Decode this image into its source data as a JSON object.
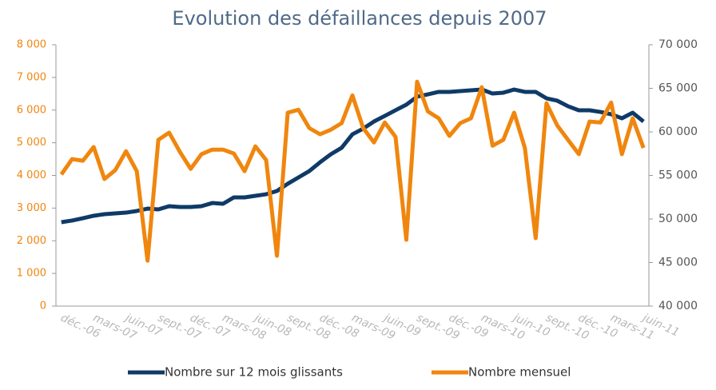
{
  "chart_data": {
    "type": "line",
    "title": "Evolution des défaillances depuis 2007",
    "categories": [
      "déc.-06",
      null,
      null,
      "mars-07",
      null,
      null,
      "juin-07",
      null,
      null,
      "sept.-07",
      null,
      null,
      "déc.-07",
      null,
      null,
      "mars-08",
      null,
      null,
      "juin-08",
      null,
      null,
      "sept.-08",
      null,
      null,
      "déc.-08",
      null,
      null,
      "mars-09",
      null,
      null,
      "juin-09",
      null,
      null,
      "sept.-09",
      null,
      null,
      "déc.-09",
      null,
      null,
      "mars-10",
      null,
      null,
      "juin-10",
      null,
      null,
      "sept.-10",
      null,
      null,
      "déc.-10",
      null,
      null,
      "mars-11",
      null,
      null,
      "juin-11"
    ],
    "series": [
      {
        "name": "Nombre sur 12 mois glissants",
        "color": "#0f3a68",
        "axis": "y2",
        "values": [
          49630,
          49820,
          50090,
          50370,
          50550,
          50640,
          50730,
          50920,
          51190,
          51100,
          51470,
          51380,
          51380,
          51470,
          51830,
          51740,
          52480,
          52480,
          52660,
          52840,
          53210,
          54040,
          54770,
          55500,
          56510,
          57430,
          58170,
          59720,
          60370,
          61190,
          61830,
          62480,
          63120,
          64040,
          64310,
          64590,
          64590,
          64680,
          64770,
          64860,
          64400,
          64500,
          64860,
          64590,
          64590,
          63850,
          63580,
          62940,
          62480,
          62480,
          62290,
          62020,
          61560,
          62200,
          61190
        ]
      },
      {
        "name": "Nombre mensuel",
        "color": "#f0860e",
        "values": [
          4030,
          4500,
          4450,
          4870,
          3890,
          4160,
          4740,
          4130,
          1390,
          5090,
          5310,
          4720,
          4200,
          4650,
          4790,
          4790,
          4670,
          4130,
          4890,
          4470,
          1540,
          5920,
          6010,
          5450,
          5260,
          5400,
          5600,
          6450,
          5450,
          5010,
          5620,
          5180,
          2030,
          6870,
          5960,
          5750,
          5210,
          5600,
          5750,
          6700,
          4910,
          5090,
          5920,
          4840,
          2080,
          6210,
          5530,
          5090,
          4650,
          5650,
          5620,
          6230,
          4650,
          5750,
          4840
        ]
      }
    ],
    "ylim": [
      0,
      8000
    ],
    "yticks": [
      0,
      {
        "value": 1000,
        "label": "1 000"
      },
      {
        "value": 2000,
        "label": "2 000"
      },
      {
        "value": 3000,
        "label": "3 000"
      },
      {
        "value": 4000,
        "label": "4 000"
      },
      {
        "value": 5000,
        "label": "5 000"
      },
      {
        "value": 6000,
        "label": "6 000"
      },
      {
        "value": 7000,
        "label": "7 000"
      },
      {
        "value": 8000,
        "label": "8 000"
      }
    ],
    "y2lim": [
      40000,
      70000
    ],
    "y2ticks": [
      {
        "value": 40000,
        "label": "40 000"
      },
      {
        "value": 45000,
        "label": "45 000"
      },
      {
        "value": 50000,
        "label": "50 000"
      },
      {
        "value": 55000,
        "label": "55 000"
      },
      {
        "value": 60000,
        "label": "60 000"
      },
      {
        "value": 65000,
        "label": "65 000"
      },
      {
        "value": 70000,
        "label": "70 000"
      }
    ],
    "legend": "bottom",
    "grid": false
  }
}
